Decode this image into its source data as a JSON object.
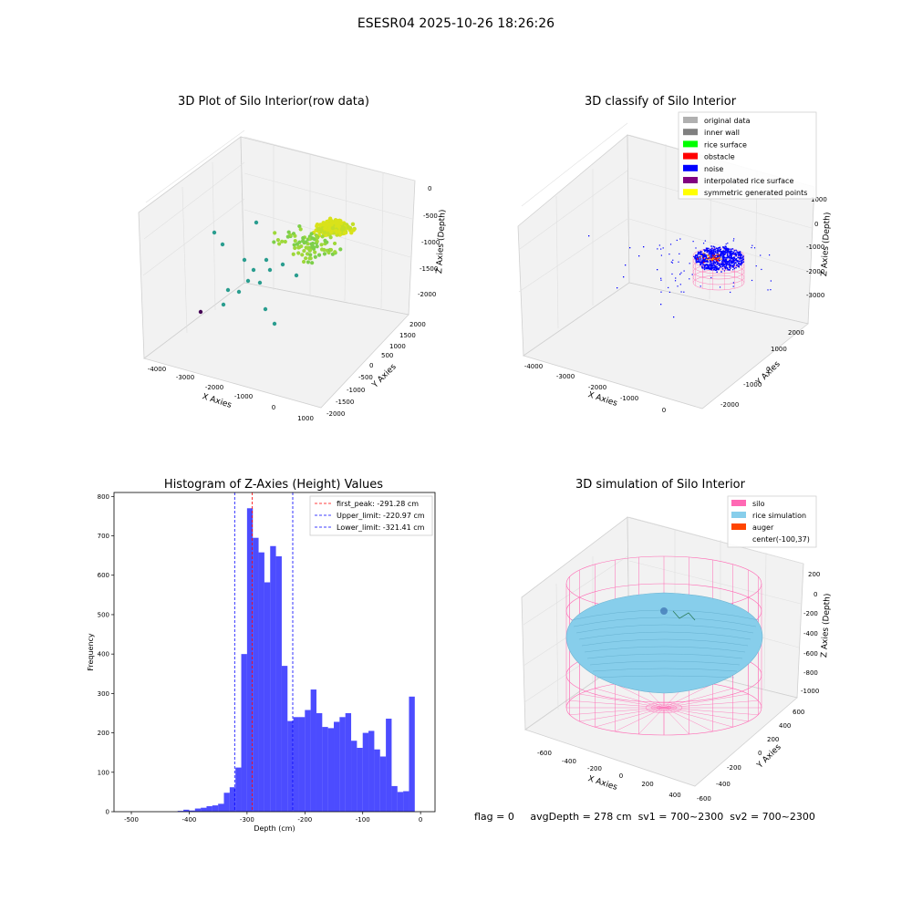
{
  "suptitle": "ESESR04 2025-10-26 18:26:26",
  "status": {
    "flag": "flag = 0",
    "avg": "avgDepth = 278 cm",
    "sv1": "sv1 = 700~2300",
    "sv2": "sv2 = 700~2300"
  },
  "chart_data": [
    {
      "type": "scatter",
      "title": "3D Plot of Silo Interior(row data)",
      "xlabel": "X Axies",
      "ylabel": "Y Axies",
      "zlabel": "Z Axies (Depth)",
      "x_ticks": [
        "-4000",
        "-3000",
        "-2000",
        "-1000",
        "0",
        "1000"
      ],
      "y_ticks": [
        "-2000",
        "-1500",
        "-1000",
        "-500",
        "0",
        "500",
        "1000",
        "1500",
        "2000"
      ],
      "z_ticks": [
        "0",
        "-500",
        "-1000",
        "-1500",
        "-2000"
      ],
      "colors": {
        "low": "#440154",
        "mid": "#2a9d8f",
        "high": "#d9e21a"
      }
    },
    {
      "type": "scatter",
      "title": "3D classify of Silo Interior",
      "xlabel": "X Axies",
      "ylabel": "Y Axies",
      "zlabel": "Z Axies (Depth)",
      "x_ticks": [
        "-4000",
        "-3000",
        "-2000",
        "-1000",
        "0"
      ],
      "y_ticks": [
        "-2000",
        "-1000",
        "0",
        "1000",
        "2000"
      ],
      "z_ticks": [
        "1000",
        "0",
        "-1000",
        "-2000",
        "-3000"
      ],
      "legend": [
        {
          "label": "original data",
          "color": "#b0b0b0"
        },
        {
          "label": "inner wall",
          "color": "#808080"
        },
        {
          "label": "rice surface",
          "color": "#00ff00"
        },
        {
          "label": "obstacle",
          "color": "#ff0000"
        },
        {
          "label": "noise",
          "color": "#0000ff"
        },
        {
          "label": "interpolated rice surface",
          "color": "#800080"
        },
        {
          "label": "symmetric generated points",
          "color": "#ffff00"
        }
      ]
    },
    {
      "type": "bar",
      "title": "Histogram of Z-Axies (Height) Values",
      "xlabel": "Depth (cm)",
      "ylabel": "Frequency",
      "xlim": [
        -530,
        25
      ],
      "ylim": [
        0,
        810
      ],
      "x_ticks": [
        -500,
        -400,
        -300,
        -200,
        -100,
        0
      ],
      "y_ticks": [
        0,
        100,
        200,
        300,
        400,
        500,
        600,
        700,
        800
      ],
      "bar_color": "#0000ff",
      "bin_width": 10,
      "bins_left_edges": [
        -420,
        -410,
        -400,
        -390,
        -380,
        -370,
        -360,
        -350,
        -340,
        -330,
        -320,
        -310,
        -300,
        -290,
        -280,
        -270,
        -260,
        -250,
        -240,
        -230,
        -220,
        -210,
        -200,
        -190,
        -180,
        -170,
        -160,
        -150,
        -140,
        -130,
        -120,
        -110,
        -100,
        -90,
        -80,
        -70,
        -60,
        -50,
        -40,
        -30,
        -20,
        -10
      ],
      "values": [
        2,
        5,
        3,
        8,
        10,
        14,
        16,
        20,
        48,
        62,
        112,
        400,
        770,
        695,
        658,
        582,
        674,
        648,
        370,
        230,
        240,
        240,
        258,
        310,
        250,
        215,
        212,
        228,
        240,
        250,
        180,
        162,
        200,
        205,
        158,
        140,
        236,
        65,
        50,
        52,
        292,
        0
      ],
      "vlines": [
        {
          "x": -291.28,
          "color": "#ff0000",
          "label": "first_peak: -291.28 cm"
        },
        {
          "x": -220.97,
          "color": "#0000ff",
          "label": "Upper_limit: -220.97 cm"
        },
        {
          "x": -321.41,
          "color": "#0000ff",
          "label": "Lower_limit: -321.41 cm"
        }
      ]
    },
    {
      "type": "area",
      "title": "3D simulation of Silo Interior",
      "xlabel": "X Axies",
      "ylabel": "Y Axies",
      "zlabel": "Z Axies (Depth)",
      "x_ticks": [
        "-600",
        "-400",
        "-200",
        "0",
        "200",
        "400"
      ],
      "y_ticks": [
        "-600",
        "-400",
        "-200",
        "0",
        "200",
        "400",
        "600"
      ],
      "z_ticks": [
        "200",
        "0",
        "-200",
        "-400",
        "-600",
        "-800",
        "-1000"
      ],
      "legend": [
        {
          "label": "silo",
          "color": "#ff69b4"
        },
        {
          "label": "rice simulation",
          "color": "#87ceeb"
        },
        {
          "label": "auger",
          "color": "#ff4500"
        },
        {
          "label": "center(-100,37)",
          "color": ""
        }
      ]
    }
  ]
}
